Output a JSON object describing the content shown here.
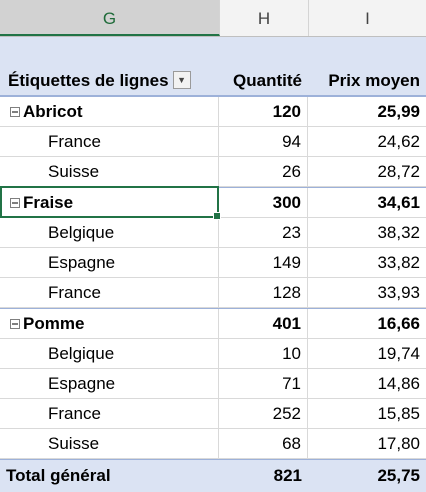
{
  "columns": {
    "g": "G",
    "h": "H",
    "i": "I"
  },
  "pivot": {
    "row_labels_header": "Étiquettes de lignes",
    "filter_icon": "dropdown-filter-icon",
    "col_quantity": "Quantité",
    "col_price": "Prix moyen",
    "groups": [
      {
        "name": "Abricot",
        "quantity": "120",
        "price": "25,99",
        "items": [
          {
            "name": "France",
            "quantity": "94",
            "price": "24,62"
          },
          {
            "name": "Suisse",
            "quantity": "26",
            "price": "28,72"
          }
        ]
      },
      {
        "name": "Fraise",
        "quantity": "300",
        "price": "34,61",
        "items": [
          {
            "name": "Belgique",
            "quantity": "23",
            "price": "38,32"
          },
          {
            "name": "Espagne",
            "quantity": "149",
            "price": "33,82"
          },
          {
            "name": "France",
            "quantity": "128",
            "price": "33,93"
          }
        ]
      },
      {
        "name": "Pomme",
        "quantity": "401",
        "price": "16,66",
        "items": [
          {
            "name": "Belgique",
            "quantity": "10",
            "price": "19,74"
          },
          {
            "name": "Espagne",
            "quantity": "71",
            "price": "14,86"
          },
          {
            "name": "France",
            "quantity": "252",
            "price": "15,85"
          },
          {
            "name": "Suisse",
            "quantity": "68",
            "price": "17,80"
          }
        ]
      }
    ],
    "total_label": "Total général",
    "total_quantity": "821",
    "total_price": "25,75"
  },
  "colors": {
    "pivot_band": "#dbe3f3",
    "selection": "#217346"
  }
}
